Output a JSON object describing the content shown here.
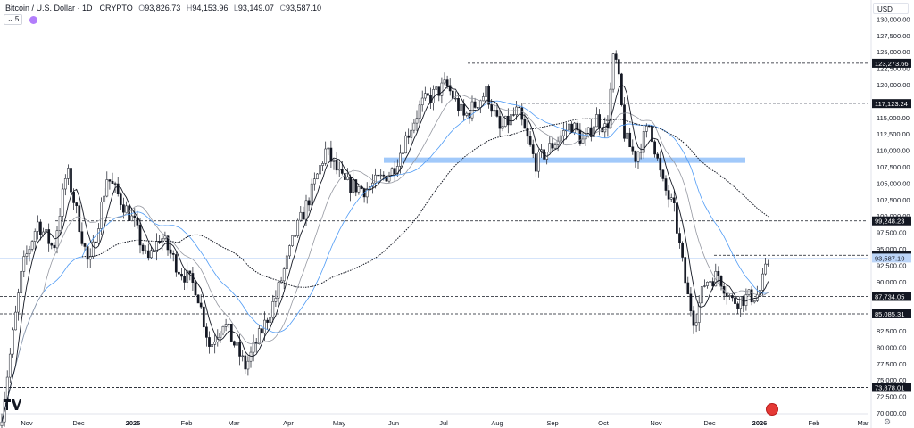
{
  "header": {
    "symbol": "Bitcoin / U.S. Dollar · 1D · CRYPTO",
    "open_label": "O",
    "open": "93,826.73",
    "high_label": "H",
    "high": "94,153.96",
    "low_label": "L",
    "low": "93,149.07",
    "close_label": "C",
    "close": "93,587.10"
  },
  "controls": {
    "collapse": "⌄ 5"
  },
  "currency": "USD",
  "icons": [
    "tradingview-logo-icon",
    "us-flag-icon",
    "settings-gear-icon"
  ],
  "colors": {
    "up": "#131722",
    "down": "#131722",
    "ma_fast": "#131722",
    "ma_mid": "#9598a1",
    "ma_slow": "#4f9bf5",
    "ma_long": "#131722",
    "zone": "#90bff9",
    "last_price_tag": "#bcd5f8"
  },
  "chart_data": {
    "type": "candlestick",
    "timeframe": "1D",
    "x_axis": {
      "labels": [
        "Nov",
        "Dec",
        "2025",
        "Feb",
        "Mar",
        "Apr",
        "May",
        "Jun",
        "Jul",
        "Aug",
        "Sep",
        "Oct",
        "Nov",
        "Dec",
        "2026",
        "Feb",
        "Mar"
      ],
      "bold": [
        "2025",
        "2026"
      ]
    },
    "y_axis": {
      "range": [
        70000,
        131000
      ],
      "ticks": [
        70000,
        72500,
        75000,
        77500,
        80000,
        82500,
        85000,
        87500,
        90000,
        92500,
        95000,
        97500,
        100000,
        102500,
        105000,
        107500,
        110000,
        112500,
        115000,
        117500,
        120000,
        122500,
        125000,
        127500,
        130000
      ],
      "tick_labels": [
        "70,000.00",
        "72,500.00",
        "75,000.00",
        "77,500.00",
        "80,000.00",
        "82,500.00",
        "85,000.00",
        "87,500.00",
        "90,000.00",
        "92,500.00",
        "95,000.00",
        "97,500.00",
        "100,000.00",
        "102,500.00",
        "105,000.00",
        "107,500.00",
        "110,000.00",
        "112,500.00",
        "115,000.00",
        "117,500.00",
        "120,000.00",
        "122,500.00",
        "125,000.00",
        "127,500.00",
        "130,000.00"
      ]
    },
    "horizontal_levels": [
      {
        "value": 123273.66,
        "label": "123,273.66",
        "from": "Jul"
      },
      {
        "value": 117123.24,
        "label": "117,123.24",
        "from": "Aug"
      },
      {
        "value": 99248.23,
        "label": "99,248.23",
        "from": "Nov"
      },
      {
        "value": 94011.67,
        "label": "94,011.67",
        "from": "Dec"
      },
      {
        "value": 87734.05,
        "label": "87,734.05",
        "from": "Nov"
      },
      {
        "value": 85085.31,
        "label": "85,085.31",
        "from": "Apr"
      },
      {
        "value": 73878.01,
        "label": "73,878.01",
        "from": "Nov"
      }
    ],
    "last_price": {
      "value": 93587.1,
      "label": "93,587.10"
    },
    "zone": {
      "value": 108500,
      "from": "Jun",
      "to": "Dec"
    },
    "anchors": [
      [
        0,
        68000
      ],
      [
        25,
        92000
      ],
      [
        42,
        99000
      ],
      [
        60,
        95000
      ],
      [
        75,
        107000
      ],
      [
        100,
        92000
      ],
      [
        120,
        106000
      ],
      [
        150,
        99000
      ],
      [
        165,
        93000
      ],
      [
        180,
        97000
      ],
      [
        200,
        92000
      ],
      [
        220,
        89000
      ],
      [
        235,
        80000
      ],
      [
        250,
        84000
      ],
      [
        275,
        77000
      ],
      [
        295,
        83000
      ],
      [
        310,
        88000
      ],
      [
        330,
        97000
      ],
      [
        350,
        104000
      ],
      [
        365,
        110000
      ],
      [
        385,
        105000
      ],
      [
        410,
        104000
      ],
      [
        440,
        107000
      ],
      [
        455,
        112000
      ],
      [
        472,
        117000
      ],
      [
        500,
        120000
      ],
      [
        520,
        115000
      ],
      [
        545,
        119000
      ],
      [
        560,
        113000
      ],
      [
        580,
        116000
      ],
      [
        600,
        108000
      ],
      [
        620,
        111000
      ],
      [
        640,
        114000
      ],
      [
        655,
        111000
      ],
      [
        668,
        115000
      ],
      [
        680,
        113000
      ],
      [
        688,
        125000
      ],
      [
        692,
        122000
      ],
      [
        700,
        112000
      ],
      [
        712,
        109000
      ],
      [
        728,
        114000
      ],
      [
        742,
        105000
      ],
      [
        755,
        101000
      ],
      [
        770,
        88000
      ],
      [
        778,
        84000
      ],
      [
        790,
        90000
      ],
      [
        805,
        91000
      ],
      [
        820,
        87000
      ],
      [
        835,
        87500
      ],
      [
        850,
        88000
      ],
      [
        862,
        93587
      ]
    ]
  }
}
